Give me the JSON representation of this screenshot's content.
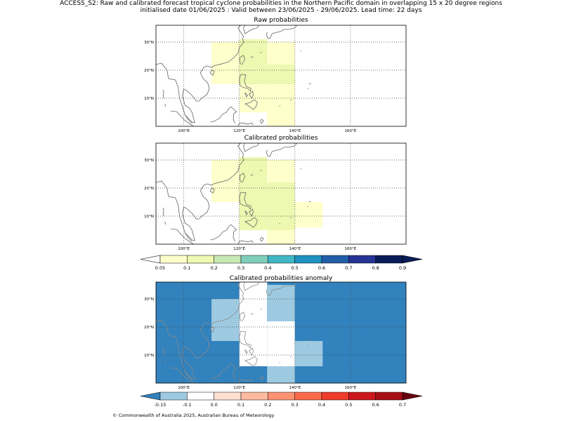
{
  "header": {
    "title_line1": "ACCESS_S2: Raw and calibrated forecast tropical cyclone probabilities in the Northern Pacific domain in overlapping 15 x 20 degree regions",
    "title_line2": "initialised date 01/06/2025 :  Valid between 23/06/2025 - 29/06/2025. Lead time: 22 days"
  },
  "map_axes": {
    "lon_ticks": [
      "100°E",
      "120°E",
      "140°E",
      "160°E"
    ],
    "lat_ticks": [
      "30°N",
      "20°N",
      "10°N"
    ],
    "lon_values": [
      100,
      120,
      140,
      160
    ],
    "lat_values": [
      30,
      20,
      10
    ],
    "extent": {
      "lon": [
        90,
        180
      ],
      "lat": [
        0,
        36
      ]
    }
  },
  "panels": [
    {
      "title": "Raw probabilities",
      "cells": [
        {
          "lon": [
            110,
            120
          ],
          "lat": [
            15,
            30
          ],
          "color": "#ffffcc"
        },
        {
          "lon": [
            120,
            130
          ],
          "lat": [
            15,
            30
          ],
          "color": "#edf8b1"
        },
        {
          "lon": [
            120,
            140
          ],
          "lat": [
            5,
            15
          ],
          "color": "#ffffcc"
        },
        {
          "lon": [
            130,
            140
          ],
          "lat": [
            0,
            5
          ],
          "color": "#ffffcc"
        },
        {
          "lon": [
            121,
            130
          ],
          "lat": [
            30,
            31
          ],
          "color": "#ffffcc"
        },
        {
          "lon": [
            130,
            140
          ],
          "lat": [
            25,
            30
          ],
          "color": "#ffffcc"
        },
        {
          "lon": [
            120,
            130
          ],
          "lat": [
            30,
            31
          ],
          "color": "#edf8b1"
        },
        {
          "lon": [
            130,
            140
          ],
          "lat": [
            15,
            22
          ],
          "color": "#edf8b1"
        },
        {
          "lon": [
            130,
            140
          ],
          "lat": [
            22,
            25
          ],
          "color": "#ffffcc"
        },
        {
          "lon": [
            128,
            130
          ],
          "lat": [
            20,
            25
          ],
          "color": "#edf8b1"
        }
      ]
    },
    {
      "title": "Calibrated probabilities",
      "cells": [
        {
          "lon": [
            110,
            120
          ],
          "lat": [
            15,
            30
          ],
          "color": "#ffffcc"
        },
        {
          "lon": [
            120,
            130
          ],
          "lat": [
            5,
            31
          ],
          "color": "#edf8b1"
        },
        {
          "lon": [
            130,
            140
          ],
          "lat": [
            5,
            22
          ],
          "color": "#edf8b1"
        },
        {
          "lon": [
            130,
            140
          ],
          "lat": [
            22,
            30
          ],
          "color": "#ffffcc"
        },
        {
          "lon": [
            130,
            140
          ],
          "lat": [
            0,
            5
          ],
          "color": "#ffffcc"
        },
        {
          "lon": [
            140,
            150
          ],
          "lat": [
            6,
            15
          ],
          "color": "#ffffcc"
        }
      ]
    },
    {
      "title": "Calibrated probabilities anomaly",
      "background": "#3182bd",
      "cells": [
        {
          "lon": [
            110,
            120
          ],
          "lat": [
            15,
            30
          ],
          "color": "#9ecae1"
        },
        {
          "lon": [
            120,
            130
          ],
          "lat": [
            0,
            31
          ],
          "color": "#ffffff"
        },
        {
          "lon": [
            120,
            130
          ],
          "lat": [
            30,
            36
          ],
          "color": "#ffffff"
        },
        {
          "lon": [
            120,
            130
          ],
          "lat": [
            30,
            36
          ],
          "color": "#ffffff"
        },
        {
          "lon": [
            130,
            140
          ],
          "lat": [
            22,
            35
          ],
          "color": "#9ecae1"
        },
        {
          "lon": [
            130,
            140
          ],
          "lat": [
            6,
            22
          ],
          "color": "#ffffff"
        },
        {
          "lon": [
            130,
            140
          ],
          "lat": [
            0,
            6
          ],
          "color": "#9ecae1"
        },
        {
          "lon": [
            140,
            150
          ],
          "lat": [
            6,
            15
          ],
          "color": "#9ecae1"
        },
        {
          "lon": [
            120,
            130
          ],
          "lat": [
            0,
            6
          ],
          "color": "#3182bd"
        }
      ]
    }
  ],
  "colorbar_probability": {
    "labels": [
      "0.05",
      "0.1",
      "0.2",
      "0.3",
      "0.4",
      "0.5",
      "0.6",
      "0.7",
      "0.8",
      "0.9"
    ],
    "colors": [
      "#ffffcc",
      "#edf8b1",
      "#c7e9b4",
      "#7fcdbb",
      "#41b6c4",
      "#1d91c0",
      "#225ea8",
      "#253494",
      "#081d58"
    ],
    "under_color": "#ffffff",
    "over_color": "#081d58"
  },
  "colorbar_anomaly": {
    "labels": [
      "-0.15",
      "-0.1",
      "0.0",
      "0.1",
      "0.2",
      "0.3",
      "0.4",
      "0.5",
      "0.6",
      "0.7"
    ],
    "colors": [
      "#9ecae1",
      "#ffffff",
      "#fee0d2",
      "#fcbba1",
      "#fc9272",
      "#fb6a4a",
      "#ef3b2c",
      "#cb181d",
      "#a50f15"
    ],
    "under_color": "#3182bd",
    "over_color": "#67000d"
  },
  "footer": {
    "copyright": "© Commonwealth of Australia 2025, Australian Bureau of Meteorology"
  }
}
